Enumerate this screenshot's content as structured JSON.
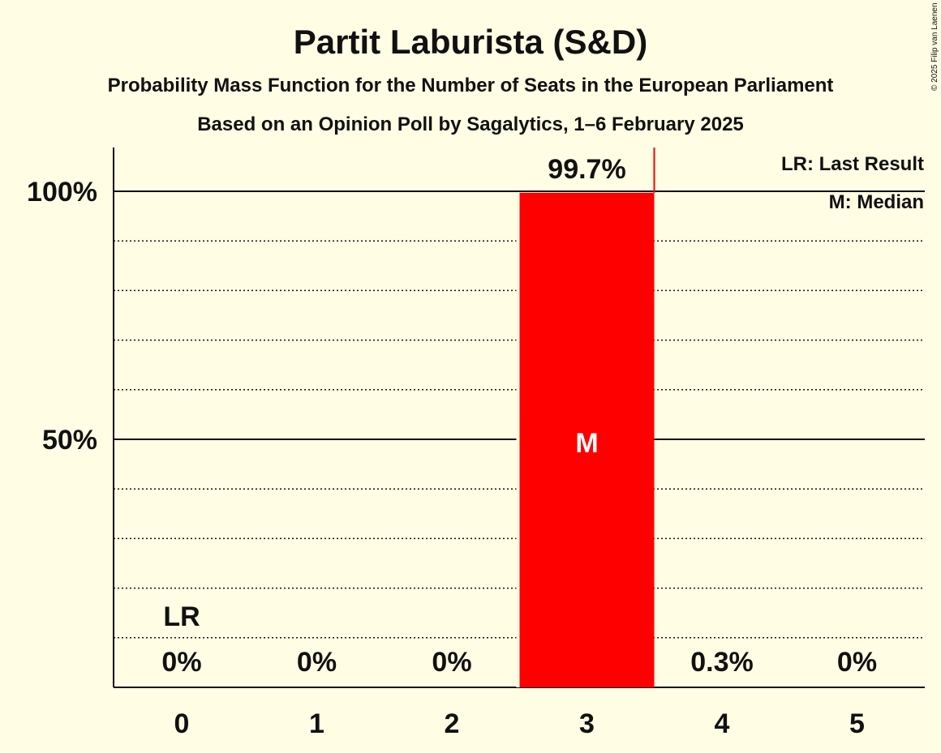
{
  "chart_data": {
    "type": "bar",
    "title": "Partit Laburista (S&D)",
    "subtitle": "Probability Mass Function for the Number of Seats in the European Parliament",
    "subtitle2": "Based on an Opinion Poll by Sagalytics, 1–6 February 2025",
    "copyright": "© 2025 Filip van Laenen",
    "categories": [
      "0",
      "1",
      "2",
      "3",
      "4",
      "5"
    ],
    "values": [
      0,
      0,
      0,
      99.7,
      0.3,
      0
    ],
    "value_labels": [
      "0%",
      "0%",
      "0%",
      "99.7%",
      "0.3%",
      "0%"
    ],
    "ylim": [
      0,
      100
    ],
    "major_ticks": [
      50,
      100
    ],
    "major_tick_labels": [
      "50%",
      "100%"
    ],
    "minor_gridlines": [
      10,
      20,
      30,
      40,
      60,
      70,
      80,
      90
    ],
    "last_result_seat": 0,
    "last_result_label": "LR",
    "median_seat": 3,
    "median_label": "M",
    "threshold_marker_between": [
      3,
      4
    ],
    "legend": [
      "LR: Last Result",
      "M: Median"
    ],
    "legend_position": "top-right",
    "colors": {
      "bar": "#ff0000",
      "background": "#fffde4",
      "text": "#111111",
      "marker": "#ff0000"
    }
  }
}
